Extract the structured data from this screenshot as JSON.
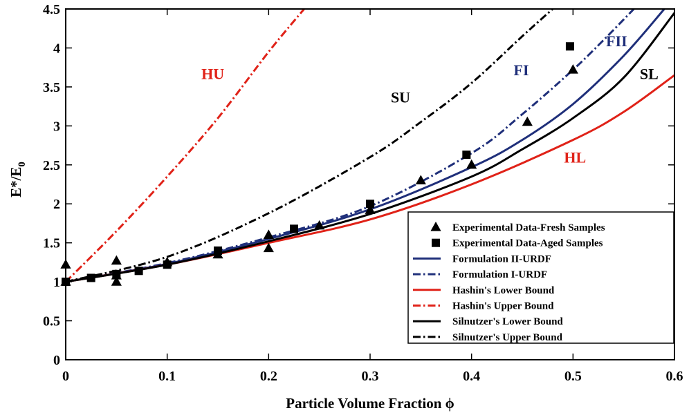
{
  "chart_data": {
    "type": "line",
    "xlabel": "Particle Volume Fraction ϕ",
    "ylabel": "E*/E",
    "ylabel_subscript": "0",
    "xlim": [
      0,
      0.6
    ],
    "ylim": [
      0,
      4.5
    ],
    "xticks": [
      "0",
      "0.1",
      "0.2",
      "0.3",
      "0.4",
      "0.5",
      "0.6"
    ],
    "yticks": [
      "0",
      "0.5",
      "1",
      "1.5",
      "2",
      "2.5",
      "3",
      "3.5",
      "4",
      "4.5"
    ],
    "grid": false,
    "legend_position": "bottom-right",
    "series": [
      {
        "name": "Experimental Data-Fresh Samples",
        "kind": "marker",
        "marker": "triangle",
        "color": "#000000",
        "x": [
          0,
          0,
          0.05,
          0.05,
          0.05,
          0.1,
          0.15,
          0.2,
          0.2,
          0.25,
          0.3,
          0.35,
          0.4,
          0.455,
          0.5
        ],
        "y": [
          1.0,
          1.22,
          1.27,
          1.0,
          1.08,
          1.25,
          1.35,
          1.6,
          1.43,
          1.72,
          1.92,
          2.3,
          2.5,
          3.05,
          3.72
        ]
      },
      {
        "name": "Experimental Data-Aged Samples",
        "kind": "marker",
        "marker": "square",
        "color": "#000000",
        "x": [
          0,
          0.025,
          0.05,
          0.072,
          0.1,
          0.15,
          0.225,
          0.3,
          0.395,
          0.497
        ],
        "y": [
          1.0,
          1.05,
          1.1,
          1.14,
          1.22,
          1.4,
          1.68,
          2.0,
          2.63,
          4.02
        ]
      },
      {
        "name": "Formulation II-URDF",
        "kind": "line",
        "dash": "solid",
        "color": "#1f2f7a",
        "x": [
          0,
          0.1,
          0.2,
          0.3,
          0.4,
          0.45,
          0.5,
          0.55,
          0.59
        ],
        "y": [
          1.0,
          1.23,
          1.55,
          1.93,
          2.47,
          2.82,
          3.28,
          3.9,
          4.5
        ]
      },
      {
        "name": "Formulation I-URDF",
        "kind": "line",
        "dash": "dashdot",
        "color": "#1f2f7a",
        "x": [
          0,
          0.1,
          0.2,
          0.3,
          0.4,
          0.45,
          0.5,
          0.53,
          0.56
        ],
        "y": [
          1.0,
          1.24,
          1.57,
          1.97,
          2.65,
          3.15,
          3.72,
          4.1,
          4.5
        ]
      },
      {
        "name": "Hashin's Lower Bound",
        "kind": "line",
        "dash": "solid",
        "color": "#e02218",
        "x": [
          0,
          0.1,
          0.2,
          0.3,
          0.4,
          0.5,
          0.55,
          0.6
        ],
        "y": [
          1.0,
          1.22,
          1.5,
          1.8,
          2.25,
          2.82,
          3.18,
          3.65
        ]
      },
      {
        "name": "Hashin's Upper Bound",
        "kind": "line",
        "dash": "dashdot",
        "color": "#e02218",
        "x": [
          0,
          0.05,
          0.1,
          0.15,
          0.2,
          0.235
        ],
        "y": [
          1.0,
          1.65,
          2.35,
          3.1,
          3.95,
          4.5
        ]
      },
      {
        "name": "Silnutzer's Lower Bound",
        "kind": "line",
        "dash": "solid",
        "color": "#000000",
        "x": [
          0,
          0.1,
          0.2,
          0.3,
          0.4,
          0.45,
          0.5,
          0.55,
          0.6
        ],
        "y": [
          1.0,
          1.22,
          1.52,
          1.87,
          2.35,
          2.7,
          3.1,
          3.62,
          4.45
        ]
      },
      {
        "name": "Silnutzer's Upper Bound",
        "kind": "line",
        "dash": "dashdot",
        "color": "#000000",
        "x": [
          0,
          0.1,
          0.2,
          0.3,
          0.35,
          0.4,
          0.45,
          0.48
        ],
        "y": [
          1.0,
          1.32,
          1.88,
          2.6,
          3.05,
          3.55,
          4.15,
          4.5
        ]
      }
    ],
    "annotations": [
      {
        "text": "HU",
        "x": 0.145,
        "y": 3.6,
        "color": "#e02218"
      },
      {
        "text": "SU",
        "x": 0.33,
        "y": 3.3,
        "color": "#000000"
      },
      {
        "text": "FI",
        "x": 0.449,
        "y": 3.65,
        "color": "#1f2f7a"
      },
      {
        "text": "FII",
        "x": 0.543,
        "y": 4.02,
        "color": "#1f2f7a"
      },
      {
        "text": "SL",
        "x": 0.575,
        "y": 3.6,
        "color": "#000000"
      },
      {
        "text": "HL",
        "x": 0.502,
        "y": 2.53,
        "color": "#e02218"
      }
    ]
  }
}
